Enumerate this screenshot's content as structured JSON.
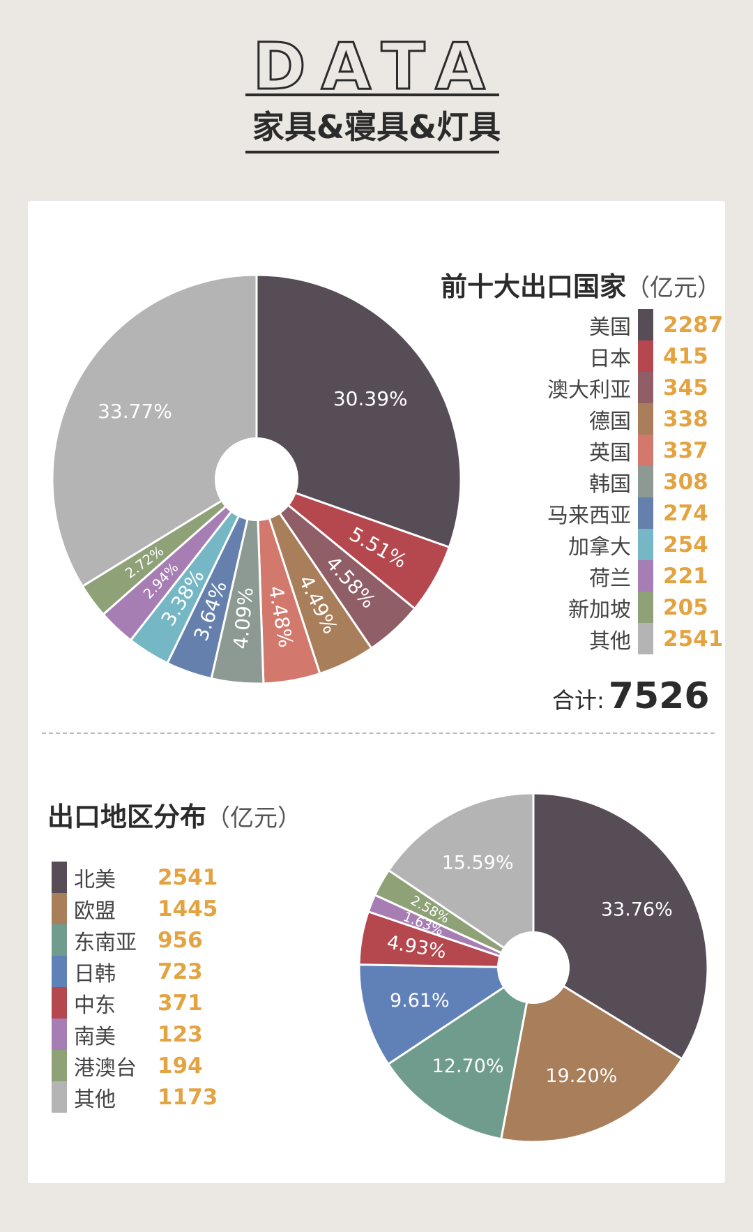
{
  "header": {
    "data_word": "DATA",
    "subtitle": "家具&寝具&灯具"
  },
  "top_section": {
    "title": "前十大出口国家",
    "unit": "（亿元）",
    "total_label": "合计:",
    "total_value": "7526"
  },
  "bottom_section": {
    "title": "出口地区分布",
    "unit": "（亿元）"
  },
  "chart_data": [
    {
      "type": "pie",
      "title": "前十大出口国家（亿元）",
      "donut": true,
      "legend_position": "right",
      "categories": [
        "美国",
        "日本",
        "澳大利亚",
        "德国",
        "英国",
        "韩国",
        "马来西亚",
        "加拿大",
        "荷兰",
        "新加坡",
        "其他"
      ],
      "values": [
        2287,
        415,
        345,
        338,
        337,
        308,
        274,
        254,
        221,
        205,
        2541
      ],
      "value_labels": [
        "2287",
        "415",
        "345",
        "338",
        "337",
        "308",
        "274",
        "254",
        "221",
        "205",
        "2541"
      ],
      "percent_labels": [
        "30.39%",
        "5.51%",
        "4.58%",
        "4.49%",
        "4.48%",
        "4.09%",
        "3.64%",
        "3.38%",
        "2.94%",
        "2.72%",
        "33.77%"
      ],
      "colors": [
        "#574d57",
        "#b5474f",
        "#8f5e67",
        "#a97e5a",
        "#d2786c",
        "#8c9a93",
        "#6680ae",
        "#76b7c5",
        "#a77eb3",
        "#8ea177",
        "#b4b4b4"
      ]
    },
    {
      "type": "pie",
      "title": "出口地区分布（亿元）",
      "donut": true,
      "legend_position": "left",
      "categories": [
        "北美",
        "欧盟",
        "东南亚",
        "日韩",
        "中东",
        "南美",
        "港澳台",
        "其他"
      ],
      "values": [
        2541,
        1445,
        956,
        723,
        371,
        123,
        194,
        1173
      ],
      "value_labels": [
        "2541",
        "1445",
        "956",
        "723",
        "371",
        "123",
        "194",
        "1173"
      ],
      "percent_labels": [
        "33.76%",
        "19.20%",
        "12.70%",
        "9.61%",
        "4.93%",
        "1.63%",
        "2.58%",
        "15.59%"
      ],
      "colors": [
        "#574d57",
        "#a97e5a",
        "#6f9c8c",
        "#6080b8",
        "#b5474f",
        "#a77eb3",
        "#8ea177",
        "#b4b4b4"
      ]
    }
  ]
}
